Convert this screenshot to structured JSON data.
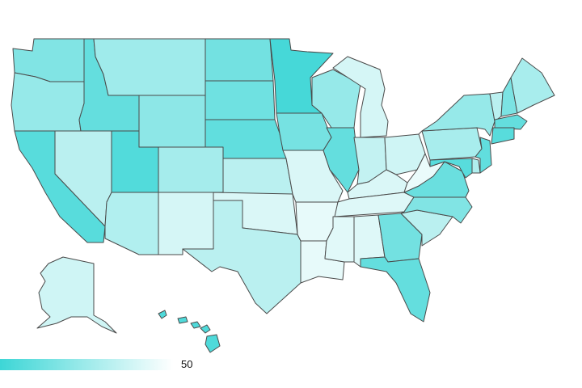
{
  "map": {
    "colors": {
      "max": "#3dd6d6",
      "min": "#ffffff",
      "stroke": "#4a4a4a"
    },
    "legend": {
      "label": "50"
    },
    "states": [
      {
        "id": "WA",
        "level": 0.62
      },
      {
        "id": "OR",
        "level": 0.5
      },
      {
        "id": "CA",
        "level": 0.85
      },
      {
        "id": "ID",
        "level": 0.78
      },
      {
        "id": "NV",
        "level": 0.3
      },
      {
        "id": "UT",
        "level": 0.88
      },
      {
        "id": "AZ",
        "level": 0.35
      },
      {
        "id": "MT",
        "level": 0.45
      },
      {
        "id": "WY",
        "level": 0.55
      },
      {
        "id": "CO",
        "level": 0.42
      },
      {
        "id": "NM",
        "level": 0.15
      },
      {
        "id": "ND",
        "level": 0.7
      },
      {
        "id": "SD",
        "level": 0.72
      },
      {
        "id": "NE",
        "level": 0.8
      },
      {
        "id": "KS",
        "level": 0.3
      },
      {
        "id": "OK",
        "level": 0.12
      },
      {
        "id": "TX",
        "level": 0.3
      },
      {
        "id": "MN",
        "level": 0.95
      },
      {
        "id": "IA",
        "level": 0.68
      },
      {
        "id": "MO",
        "level": 0.12
      },
      {
        "id": "AR",
        "level": 0.05
      },
      {
        "id": "LA",
        "level": 0.05
      },
      {
        "id": "WI",
        "level": 0.5
      },
      {
        "id": "IL",
        "level": 0.78
      },
      {
        "id": "MI",
        "level": 0.15
      },
      {
        "id": "IN",
        "level": 0.25
      },
      {
        "id": "OH",
        "level": 0.18
      },
      {
        "id": "KY",
        "level": 0.12
      },
      {
        "id": "TN",
        "level": 0.1
      },
      {
        "id": "MS",
        "level": 0.08
      },
      {
        "id": "AL",
        "level": 0.1
      },
      {
        "id": "GA",
        "level": 0.7
      },
      {
        "id": "FL",
        "level": 0.78
      },
      {
        "id": "SC",
        "level": 0.3
      },
      {
        "id": "NC",
        "level": 0.62
      },
      {
        "id": "VA",
        "level": 0.75
      },
      {
        "id": "WV",
        "level": 0.03
      },
      {
        "id": "PA",
        "level": 0.4
      },
      {
        "id": "NY",
        "level": 0.5
      },
      {
        "id": "VT",
        "level": 0.3
      },
      {
        "id": "NH",
        "level": 0.65
      },
      {
        "id": "ME",
        "level": 0.4
      },
      {
        "id": "MA",
        "level": 0.78
      },
      {
        "id": "CT",
        "level": 0.85
      },
      {
        "id": "NJ",
        "level": 0.8
      },
      {
        "id": "DE",
        "level": 0.35
      },
      {
        "id": "MD",
        "level": 0.85
      },
      {
        "id": "AK",
        "level": 0.18
      },
      {
        "id": "HI",
        "level": 0.9
      }
    ]
  }
}
